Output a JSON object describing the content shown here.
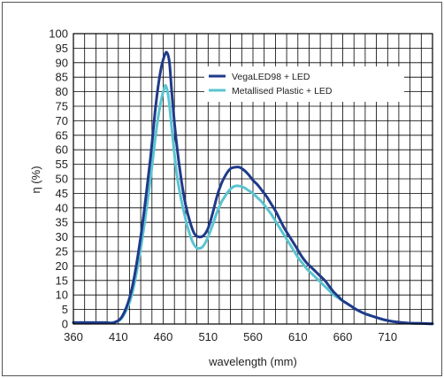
{
  "chart_data": {
    "type": "line",
    "title": "",
    "xlabel": "wavelength (mm)",
    "ylabel": "η (%)",
    "xlim": [
      360,
      760
    ],
    "ylim": [
      0,
      100
    ],
    "x_ticks": [
      360,
      410,
      460,
      510,
      560,
      610,
      660,
      710
    ],
    "y_ticks": [
      0,
      5,
      10,
      15,
      20,
      25,
      30,
      35,
      40,
      45,
      50,
      55,
      60,
      65,
      70,
      75,
      80,
      85,
      90,
      95,
      100
    ],
    "x_grid_step": 12.5,
    "y_grid_step": 5,
    "grid": true,
    "legend_position": "top-right",
    "series": [
      {
        "name": "VegaLED98 + LED",
        "color": "#1f3a8a",
        "points": [
          [
            360,
            0.5
          ],
          [
            395,
            0.5
          ],
          [
            405,
            0.5
          ],
          [
            415,
            3
          ],
          [
            425,
            12
          ],
          [
            435,
            30
          ],
          [
            445,
            55
          ],
          [
            452,
            76
          ],
          [
            457,
            87
          ],
          [
            461,
            92
          ],
          [
            464,
            93.5
          ],
          [
            467,
            90
          ],
          [
            470,
            78
          ],
          [
            475,
            62
          ],
          [
            480,
            50
          ],
          [
            485,
            41
          ],
          [
            490,
            35
          ],
          [
            495,
            31
          ],
          [
            500,
            30
          ],
          [
            505,
            30.5
          ],
          [
            510,
            33
          ],
          [
            515,
            38
          ],
          [
            520,
            44
          ],
          [
            525,
            48.5
          ],
          [
            530,
            51.5
          ],
          [
            535,
            53.5
          ],
          [
            540,
            54
          ],
          [
            545,
            54
          ],
          [
            550,
            53
          ],
          [
            555,
            51.5
          ],
          [
            560,
            49.5
          ],
          [
            565,
            48
          ],
          [
            570,
            46
          ],
          [
            575,
            44
          ],
          [
            580,
            41.5
          ],
          [
            585,
            39
          ],
          [
            590,
            36
          ],
          [
            595,
            33
          ],
          [
            600,
            30.5
          ],
          [
            605,
            28
          ],
          [
            610,
            25.5
          ],
          [
            615,
            23
          ],
          [
            620,
            21
          ],
          [
            625,
            19.5
          ],
          [
            630,
            18
          ],
          [
            635,
            16.5
          ],
          [
            640,
            15
          ],
          [
            645,
            13
          ],
          [
            650,
            11
          ],
          [
            655,
            9.5
          ],
          [
            660,
            8
          ],
          [
            665,
            7
          ],
          [
            670,
            6
          ],
          [
            675,
            5
          ],
          [
            680,
            4.2
          ],
          [
            685,
            3.5
          ],
          [
            690,
            3
          ],
          [
            695,
            2.5
          ],
          [
            700,
            2
          ],
          [
            710,
            1.2
          ],
          [
            720,
            0.7
          ],
          [
            730,
            0.4
          ],
          [
            745,
            0.2
          ],
          [
            760,
            0.1
          ]
        ]
      },
      {
        "name": "Metallised Plastic + LED",
        "color": "#5bc4d1",
        "points": [
          [
            360,
            0.5
          ],
          [
            395,
            0.5
          ],
          [
            405,
            0.5
          ],
          [
            415,
            2.5
          ],
          [
            425,
            10
          ],
          [
            435,
            26
          ],
          [
            445,
            48
          ],
          [
            452,
            66
          ],
          [
            457,
            76
          ],
          [
            461,
            81
          ],
          [
            463,
            82
          ],
          [
            466,
            78
          ],
          [
            470,
            66
          ],
          [
            475,
            52
          ],
          [
            480,
            43
          ],
          [
            485,
            36
          ],
          [
            490,
            30.5
          ],
          [
            495,
            27
          ],
          [
            500,
            26
          ],
          [
            505,
            27
          ],
          [
            510,
            30
          ],
          [
            515,
            34
          ],
          [
            520,
            38.5
          ],
          [
            525,
            42
          ],
          [
            530,
            44.5
          ],
          [
            535,
            46.5
          ],
          [
            540,
            47.5
          ],
          [
            545,
            47.5
          ],
          [
            550,
            47
          ],
          [
            555,
            46
          ],
          [
            560,
            45
          ],
          [
            565,
            43.5
          ],
          [
            570,
            42
          ],
          [
            575,
            40
          ],
          [
            580,
            38
          ],
          [
            585,
            35.5
          ],
          [
            590,
            33
          ],
          [
            595,
            30.5
          ],
          [
            600,
            28
          ],
          [
            605,
            25.5
          ],
          [
            610,
            23
          ],
          [
            615,
            21
          ],
          [
            620,
            19
          ],
          [
            625,
            17.5
          ],
          [
            630,
            16
          ],
          [
            635,
            14.5
          ],
          [
            640,
            13
          ],
          [
            645,
            11.5
          ],
          [
            650,
            10
          ],
          [
            655,
            9
          ],
          [
            660,
            8
          ],
          [
            665,
            7
          ],
          [
            670,
            6
          ],
          [
            675,
            5
          ],
          [
            680,
            4.2
          ],
          [
            685,
            3.5
          ],
          [
            690,
            3
          ],
          [
            695,
            2.5
          ],
          [
            700,
            2
          ],
          [
            710,
            1.2
          ],
          [
            720,
            0.7
          ],
          [
            730,
            0.4
          ],
          [
            745,
            0.2
          ],
          [
            760,
            0.1
          ]
        ]
      }
    ]
  }
}
